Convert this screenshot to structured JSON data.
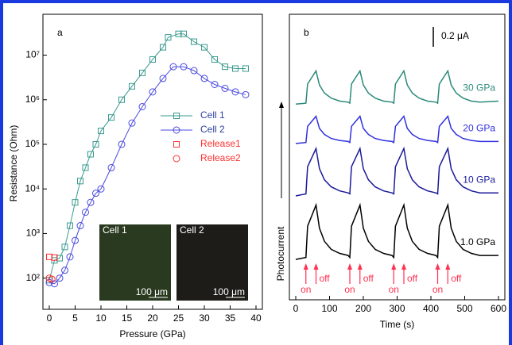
{
  "chart_data": [
    {
      "type": "line",
      "panel": "a",
      "log_y": true,
      "xlabel": "Pressure (GPa)",
      "ylabel": "Resistance (Ohm)",
      "xlim": [
        0,
        40
      ],
      "xticks": [
        0,
        5,
        10,
        15,
        20,
        25,
        30,
        35,
        40
      ],
      "ylim": [
        20,
        70000000
      ],
      "yticks": [
        {
          "value": 100,
          "label": "10²"
        },
        {
          "value": 1000,
          "label": "10³"
        },
        {
          "value": 10000,
          "label": "10⁴"
        },
        {
          "value": 100000,
          "label": "10⁵"
        },
        {
          "value": 1000000,
          "label": "10⁶"
        },
        {
          "value": 10000000,
          "label": "10⁷"
        }
      ],
      "series": [
        {
          "name": "Cell 1",
          "color": "#3a9a8f",
          "marker": "square",
          "x": [
            0,
            1,
            2,
            3,
            4,
            5,
            6,
            7,
            8,
            9,
            10,
            12,
            14,
            16,
            18,
            20,
            22,
            23,
            25,
            26,
            28,
            30,
            32,
            34,
            36,
            38
          ],
          "values": [
            90,
            250,
            280,
            500,
            1500,
            5000,
            15000,
            30000,
            60000,
            100000,
            200000,
            400000,
            1000000,
            2000000,
            4000000,
            8000000,
            15000000,
            25000000,
            30000000,
            30000000,
            20000000,
            15000000,
            8000000,
            5500000,
            5000000,
            5000000
          ]
        },
        {
          "name": "Cell 2",
          "color": "#4a4ae0",
          "marker": "circle",
          "x": [
            0,
            1,
            2,
            3,
            4,
            5,
            6,
            7,
            8,
            9,
            10,
            12,
            14,
            16,
            18,
            20,
            22,
            24,
            26,
            28,
            30,
            32,
            34,
            36,
            38
          ],
          "values": [
            80,
            75,
            100,
            150,
            300,
            700,
            1500,
            3000,
            5000,
            8000,
            10000,
            30000,
            100000,
            300000,
            700000,
            1500000,
            3000000,
            5500000,
            5500000,
            4500000,
            3000000,
            2200000,
            1800000,
            1500000,
            1300000
          ]
        },
        {
          "name": "Release1",
          "color": "#ff3030",
          "marker": "square",
          "line": false,
          "x": [
            0,
            1
          ],
          "values": [
            300,
            290
          ]
        },
        {
          "name": "Release2",
          "color": "#ff3030",
          "marker": "circle",
          "line": false,
          "x": [
            0,
            0.5
          ],
          "values": [
            100,
            95
          ]
        }
      ],
      "insets": [
        {
          "label": "Cell 1",
          "scale": "100 μm",
          "color": "#2a3a20"
        },
        {
          "label": "Cell 2",
          "scale": "100 μm",
          "color": "#1e1c18"
        }
      ]
    },
    {
      "type": "line",
      "panel": "b",
      "log_y": false,
      "xlabel": "Time (s)",
      "ylabel": "Photocurrent",
      "scale_bar": "0.2 μA",
      "xlim": [
        0,
        600
      ],
      "xticks": [
        0,
        100,
        200,
        300,
        400,
        500,
        600
      ],
      "ylim": [
        0,
        2.8
      ],
      "x": [
        0,
        30,
        35,
        60,
        70,
        85,
        105,
        130,
        155,
        160,
        165,
        190,
        200,
        215,
        235,
        260,
        285,
        290,
        295,
        320,
        330,
        345,
        365,
        390,
        415,
        420,
        425,
        450,
        460,
        475,
        495,
        520,
        545,
        600
      ],
      "series": [
        {
          "name": "1.0 GPa",
          "color": "#000000",
          "values": [
            0.4,
            0.42,
            0.73,
            0.94,
            0.71,
            0.58,
            0.5,
            0.46,
            0.44,
            0.42,
            0.73,
            0.94,
            0.71,
            0.58,
            0.5,
            0.46,
            0.44,
            0.42,
            0.73,
            0.94,
            0.71,
            0.58,
            0.5,
            0.46,
            0.44,
            0.42,
            0.73,
            0.94,
            0.71,
            0.58,
            0.5,
            0.46,
            0.44,
            0.44
          ]
        },
        {
          "name": "10 GPa",
          "color": "#1a1a9a",
          "values": [
            1.03,
            1.05,
            1.32,
            1.5,
            1.3,
            1.19,
            1.12,
            1.08,
            1.06,
            1.05,
            1.32,
            1.5,
            1.3,
            1.19,
            1.12,
            1.08,
            1.06,
            1.05,
            1.32,
            1.5,
            1.3,
            1.19,
            1.12,
            1.08,
            1.06,
            1.05,
            1.32,
            1.5,
            1.3,
            1.19,
            1.12,
            1.08,
            1.06,
            1.06
          ]
        },
        {
          "name": "20 GPa",
          "color": "#3030e0",
          "values": [
            1.55,
            1.56,
            1.72,
            1.82,
            1.7,
            1.64,
            1.6,
            1.58,
            1.57,
            1.56,
            1.72,
            1.82,
            1.7,
            1.64,
            1.6,
            1.58,
            1.57,
            1.56,
            1.72,
            1.82,
            1.7,
            1.64,
            1.6,
            1.58,
            1.57,
            1.56,
            1.72,
            1.82,
            1.7,
            1.64,
            1.6,
            1.58,
            1.57,
            1.57
          ]
        },
        {
          "name": "30 GPa",
          "color": "#2a8a7a",
          "values": [
            1.94,
            1.95,
            2.14,
            2.27,
            2.13,
            2.05,
            2.0,
            1.97,
            1.96,
            1.95,
            2.14,
            2.27,
            2.13,
            2.05,
            2.0,
            1.97,
            1.96,
            1.95,
            2.14,
            2.27,
            2.13,
            2.05,
            2.0,
            1.97,
            1.96,
            1.95,
            2.14,
            2.27,
            2.13,
            2.05,
            2.0,
            1.97,
            1.96,
            1.97
          ]
        }
      ],
      "markers": [
        {
          "label": "on",
          "x": 30
        },
        {
          "label": "off",
          "x": 60
        },
        {
          "label": "on",
          "x": 160
        },
        {
          "label": "off",
          "x": 190
        },
        {
          "label": "on",
          "x": 290
        },
        {
          "label": "off",
          "x": 320
        },
        {
          "label": "on",
          "x": 420
        },
        {
          "label": "off",
          "x": 450
        }
      ],
      "marker_color": "#ff3050"
    }
  ]
}
